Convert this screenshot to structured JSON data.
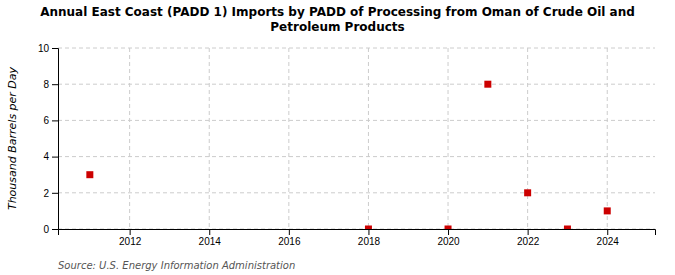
{
  "chart_data": {
    "type": "scatter",
    "title": "Annual East Coast (PADD 1) Imports by PADD of Processing from Oman of Crude Oil and\nPetroleum Products",
    "y_label": "Thousand Barrels per Day",
    "source": "Source: U.S. Energy Information Administration",
    "x": [
      2011,
      2018,
      2020,
      2021,
      2022,
      2023,
      2024
    ],
    "values": [
      3,
      0,
      0,
      8,
      2,
      0,
      1
    ],
    "color": "#cc0000",
    "marker": "square",
    "xlim": [
      2010.2,
      2025.2
    ],
    "ylim": [
      0,
      10
    ],
    "xticks": [
      2012,
      2014,
      2016,
      2018,
      2020,
      2022,
      2024
    ],
    "yticks": [
      0,
      2,
      4,
      6,
      8,
      10
    ],
    "grid": true
  }
}
